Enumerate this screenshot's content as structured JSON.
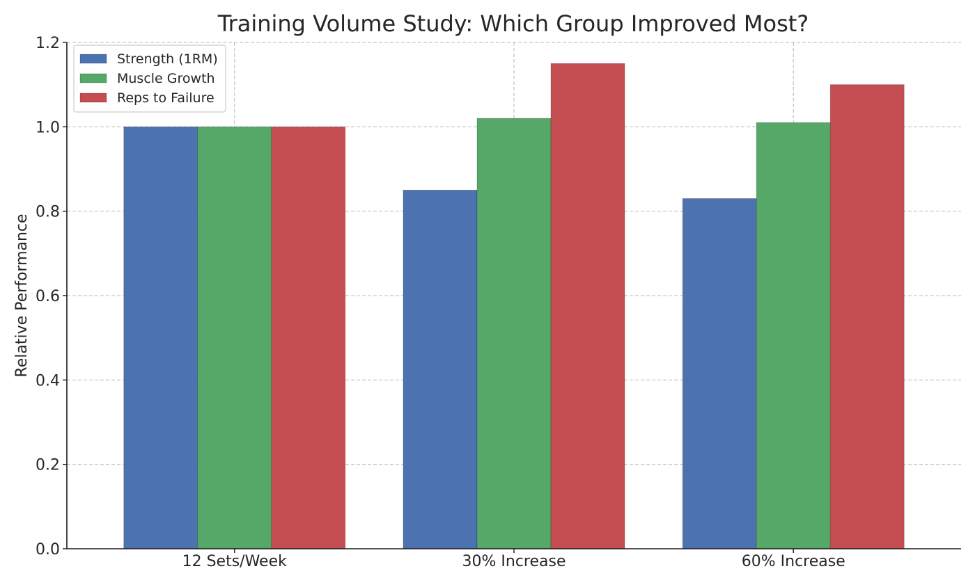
{
  "chart_data": {
    "type": "bar",
    "title": "Training Volume Study: Which Group Improved Most?",
    "xlabel": "",
    "ylabel": "Relative Performance",
    "categories": [
      "12 Sets/Week",
      "30% Increase",
      "60% Increase"
    ],
    "series": [
      {
        "name": "Strength (1RM)",
        "color": "#4c72b0",
        "values": [
          1.0,
          0.85,
          0.83
        ]
      },
      {
        "name": "Muscle Growth",
        "color": "#55a868",
        "values": [
          1.0,
          1.02,
          1.01
        ]
      },
      {
        "name": "Reps to Failure",
        "color": "#c44e52",
        "values": [
          1.0,
          1.15,
          1.1
        ]
      }
    ],
    "ylim": [
      0,
      1.2
    ],
    "yticks": [
      "0.0",
      "0.2",
      "0.4",
      "0.6",
      "0.8",
      "1.0",
      "1.2"
    ],
    "grid": true,
    "legend_position": "top-left"
  }
}
